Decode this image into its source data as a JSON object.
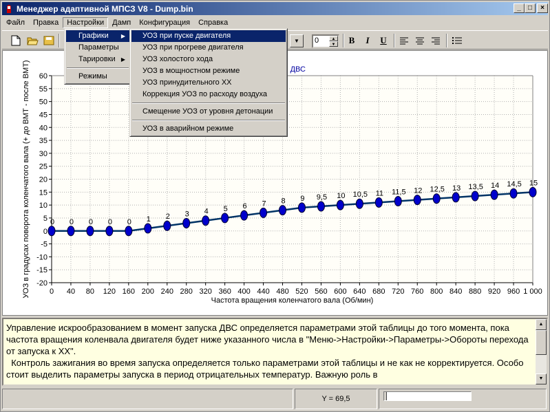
{
  "window": {
    "title": "Менеджер адаптивной МПСЗ V8 - Dump.bin",
    "buttons": {
      "minimize": "_",
      "maximize": "□",
      "close": "×"
    }
  },
  "menubar": {
    "items": [
      "Файл",
      "Правка",
      "Настройки",
      "Дамп",
      "Конфигурация",
      "Справка"
    ],
    "open_index": 2
  },
  "settings_menu": {
    "items": [
      "Графики",
      "Параметры",
      "Тарировки",
      "Режимы"
    ],
    "highlighted": 0
  },
  "graphs_submenu": {
    "group1": [
      "УОЗ при пуске двигателя",
      "УОЗ при прогреве двигателя",
      "УОЗ холостого хода",
      "УОЗ в мощностном режиме",
      "УОЗ принудительного ХХ",
      "Коррекция УОЗ по расходу воздуха"
    ],
    "group2": [
      "Смещение УОЗ от уровня детонации"
    ],
    "group3": [
      "УОЗ в аварийном режиме"
    ],
    "highlighted": 0
  },
  "toolbar": {
    "icons": [
      "new-file-icon",
      "open-folder-icon",
      "save-icon"
    ],
    "font_size": "0",
    "bold": "B",
    "italic": "I",
    "underline": "U"
  },
  "chart_data": {
    "type": "line",
    "title_fragment": "ске ДВС",
    "xlabel": "Частота вращения коленчатого вала (Об/мин)",
    "ylabel": "УОЗ  в градусах поворота коленчатого вала (+ до ВМТ - после ВМТ)",
    "xlim": [
      0,
      1000
    ],
    "ylim": [
      -20,
      60
    ],
    "x_ticks": [
      "0",
      "40",
      "80",
      "120",
      "160",
      "200",
      "240",
      "280",
      "320",
      "360",
      "400",
      "440",
      "480",
      "520",
      "560",
      "600",
      "640",
      "680",
      "720",
      "760",
      "800",
      "840",
      "880",
      "920",
      "960",
      "1 000"
    ],
    "y_ticks": [
      "60",
      "55",
      "50",
      "45",
      "40",
      "35",
      "30",
      "25",
      "20",
      "15",
      "10",
      "5",
      "0",
      "-5",
      "-10",
      "-15",
      "-20"
    ],
    "x": [
      0,
      40,
      80,
      120,
      160,
      200,
      240,
      280,
      320,
      360,
      400,
      440,
      480,
      520,
      560,
      600,
      640,
      680,
      720,
      760,
      800,
      840,
      880,
      920,
      960,
      1000
    ],
    "values": [
      0,
      0,
      0,
      0,
      0,
      1,
      2,
      3,
      4,
      5,
      6,
      7,
      8,
      9,
      9.5,
      10,
      10.5,
      11,
      11.5,
      12,
      12.5,
      13,
      13.5,
      14,
      14.5,
      15
    ],
    "labels": [
      "0",
      "0",
      "0",
      "0",
      "0",
      "1",
      "2",
      "3",
      "4",
      "5",
      "6",
      "7",
      "8",
      "9",
      "9,5",
      "10",
      "10,5",
      "11",
      "11,5",
      "12",
      "12,5",
      "13",
      "13,5",
      "14",
      "14,5",
      "15"
    ],
    "grid": true,
    "line_color": "#003366",
    "marker_color": "#0000cc"
  },
  "description": "Управление искрообразованием в момент запуска ДВС определяется параметрами этой таблицы до того момента, пока частота вращения коленвала двигателя будет ниже указанного числа в \"Меню->Настройки->Параметры->Обороты перехода от запуска к ХХ\".\n  Контроль зажигания во время запуска  определяется только параметрами  этой таблицы и не как не корректируется.  Особо  стоит  выделить  параметры запуска в период отрицательных температур.  Важную роль в",
  "status": {
    "y_readout": "Y = 69,5"
  }
}
